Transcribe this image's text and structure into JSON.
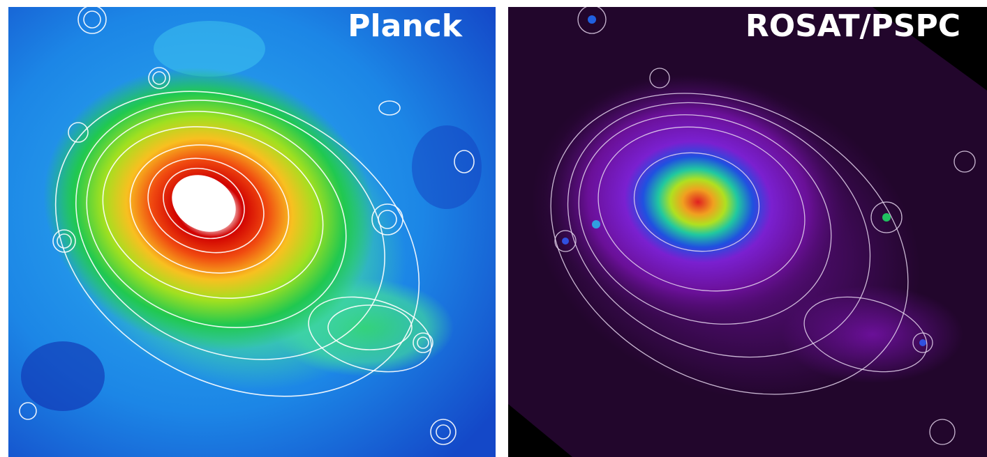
{
  "panels": [
    {
      "label": "Planck"
    },
    {
      "label": "ROSAT/PSPC"
    }
  ]
}
